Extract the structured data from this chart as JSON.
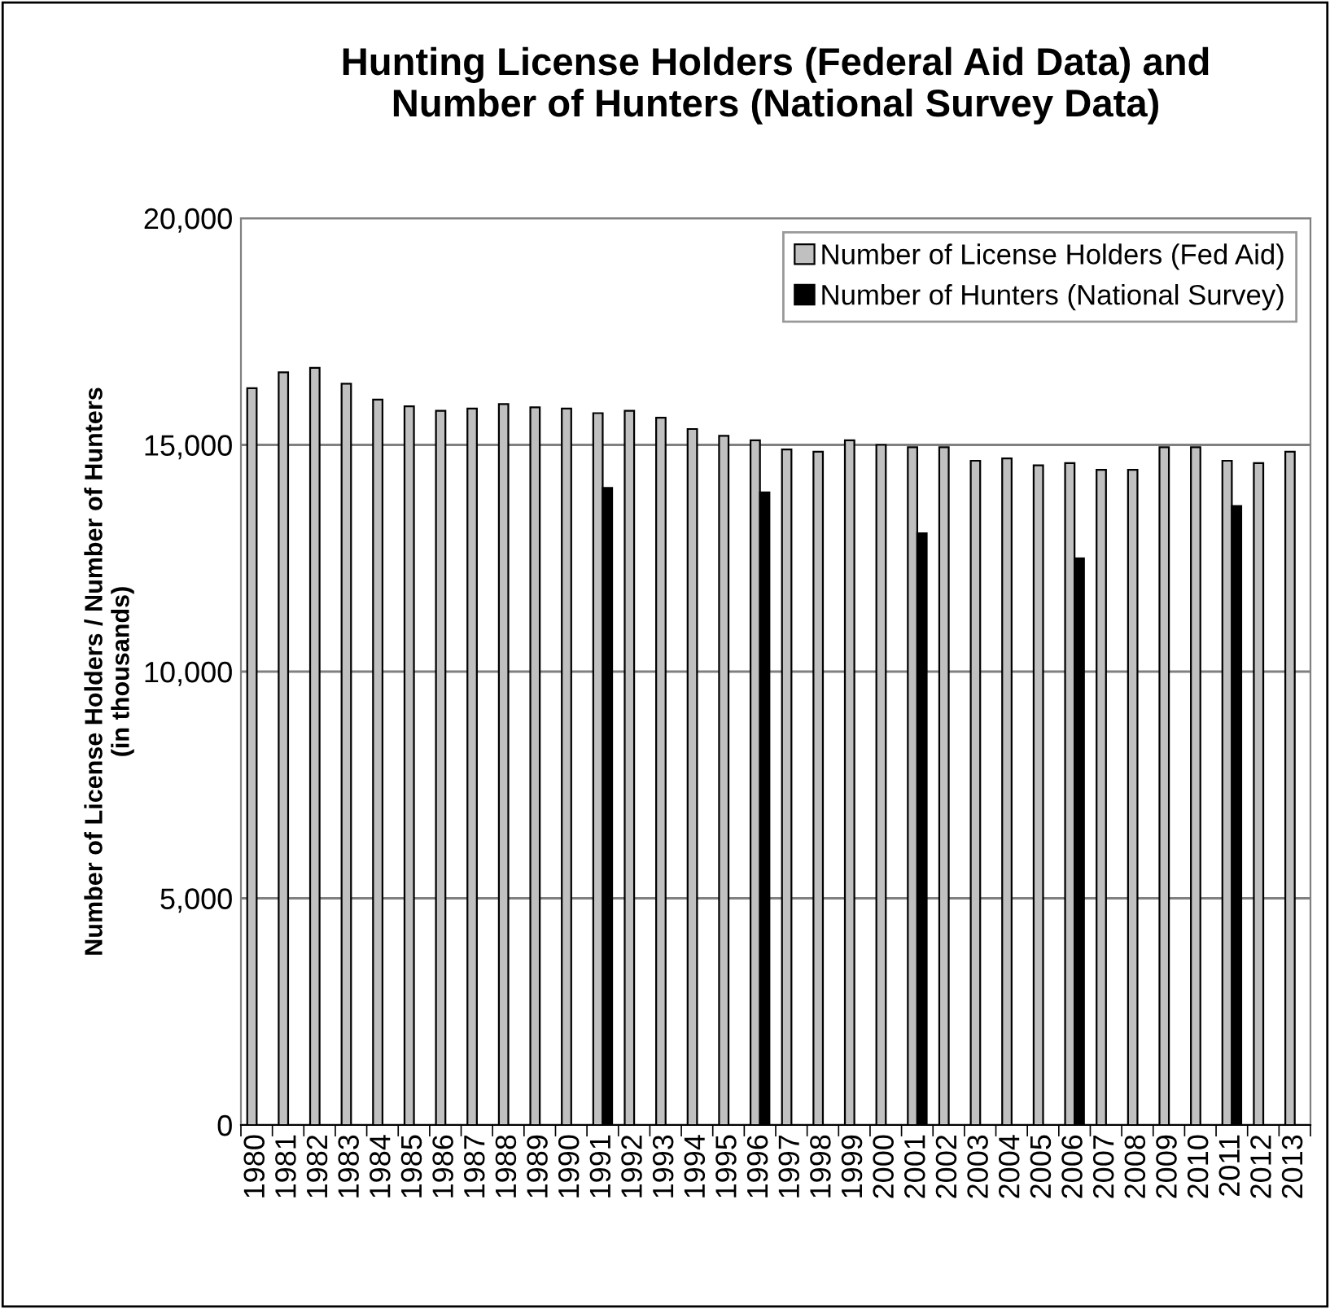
{
  "chart_data": {
    "type": "bar",
    "title": "Hunting License Holders (Federal Aid Data) and\nNumber of Hunters (National Survey Data)",
    "ylabel": "Number of License Holders / Number of Hunters\n(in thousands)",
    "categories": [
      "1980",
      "1981",
      "1982",
      "1983",
      "1984",
      "1985",
      "1986",
      "1987",
      "1988",
      "1989",
      "1990",
      "1991",
      "1992",
      "1993",
      "1994",
      "1995",
      "1996",
      "1997",
      "1998",
      "1999",
      "2000",
      "2001",
      "2002",
      "2003",
      "2004",
      "2005",
      "2006",
      "2007",
      "2008",
      "2009",
      "2010",
      "2011",
      "2012",
      "2013"
    ],
    "series": [
      {
        "name": "Number of License Holders (Fed Aid)",
        "color": "#c0c0c0",
        "values": [
          16250,
          16600,
          16700,
          16350,
          16000,
          15850,
          15750,
          15800,
          15900,
          15830,
          15800,
          15700,
          15750,
          15600,
          15350,
          15200,
          15100,
          14900,
          14850,
          15100,
          15000,
          14950,
          14950,
          14650,
          14700,
          14550,
          14600,
          14450,
          14450,
          14950,
          14950,
          14650,
          14600,
          14850
        ]
      },
      {
        "name": "Number of Hunters (National Survey)",
        "color": "#000000",
        "values": [
          null,
          null,
          null,
          null,
          null,
          null,
          null,
          null,
          null,
          null,
          null,
          14050,
          null,
          null,
          null,
          null,
          13950,
          null,
          null,
          null,
          null,
          13050,
          null,
          null,
          null,
          null,
          12500,
          null,
          null,
          null,
          null,
          13650,
          null,
          null
        ]
      }
    ],
    "ylim": [
      0,
      20000
    ],
    "yticks": [
      {
        "value": 0,
        "label": "0"
      },
      {
        "value": 5000,
        "label": "5,000"
      },
      {
        "value": 10000,
        "label": "10,000"
      },
      {
        "value": 15000,
        "label": "15,000"
      },
      {
        "value": 20000,
        "label": "20,000"
      }
    ],
    "grid": "y",
    "legend": "top right"
  }
}
